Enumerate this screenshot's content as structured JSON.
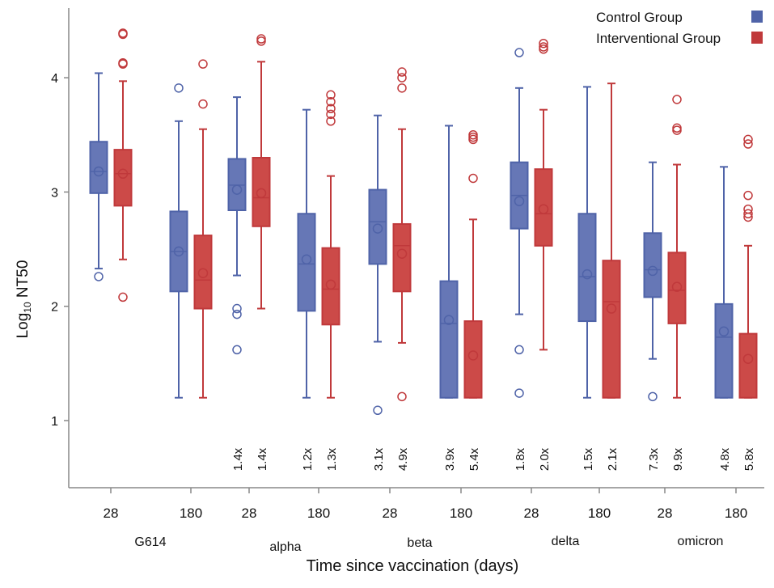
{
  "chart_data": {
    "type": "boxplot",
    "ylabel_main": "Log",
    "ylabel_sub": "10",
    "ylabel_rest": " NT50",
    "xlabel": "Time since vaccination (days)",
    "yticks": [
      1,
      2,
      3,
      4
    ],
    "ylim": [
      0.9,
      4.6
    ],
    "colors": {
      "control": "#4f63a8",
      "interventional": "#c0393b"
    },
    "legend": [
      {
        "name": "Control Group",
        "color": "#4f63a8"
      },
      {
        "name": "Interventional Group",
        "color": "#c0393b"
      }
    ],
    "legend_position": "top-right",
    "variants": [
      "G614",
      "alpha",
      "beta",
      "delta",
      "omicron"
    ],
    "timepoint_labels": [
      "28",
      "180",
      "28",
      "180",
      "28",
      "180",
      "28",
      "180",
      "28",
      "180"
    ],
    "groups": [
      {
        "variant": "G614",
        "day": "28",
        "control": {
          "min": 2.33,
          "q1": 2.99,
          "median": 3.18,
          "q3": 3.44,
          "max": 4.04,
          "mean": 3.18,
          "outliers": [
            2.26
          ],
          "fold": ""
        },
        "interventional": {
          "min": 2.41,
          "q1": 2.88,
          "median": 3.16,
          "q3": 3.37,
          "max": 3.97,
          "mean": 3.16,
          "outliers": [
            2.08,
            4.12,
            4.13,
            4.38,
            4.39
          ],
          "fold": ""
        }
      },
      {
        "variant": "G614",
        "day": "180",
        "control": {
          "min": 1.2,
          "q1": 2.13,
          "median": 2.48,
          "q3": 2.83,
          "max": 3.62,
          "mean": 2.48,
          "outliers": [
            3.91
          ],
          "fold": ""
        },
        "interventional": {
          "min": 1.2,
          "q1": 1.98,
          "median": 2.23,
          "q3": 2.62,
          "max": 3.55,
          "mean": 2.29,
          "outliers": [
            3.77,
            4.12
          ],
          "fold": ""
        }
      },
      {
        "variant": "alpha",
        "day": "28",
        "control": {
          "min": 2.27,
          "q1": 2.84,
          "median": 3.06,
          "q3": 3.29,
          "max": 3.83,
          "mean": 3.02,
          "outliers": [
            1.62,
            1.93,
            1.98
          ],
          "fold": "1.4x"
        },
        "interventional": {
          "min": 1.98,
          "q1": 2.7,
          "median": 2.95,
          "q3": 3.3,
          "max": 4.14,
          "mean": 2.99,
          "outliers": [
            4.32,
            4.34
          ],
          "fold": "1.4x"
        }
      },
      {
        "variant": "alpha",
        "day": "180",
        "control": {
          "min": 1.2,
          "q1": 1.96,
          "median": 2.37,
          "q3": 2.81,
          "max": 3.72,
          "mean": 2.41,
          "outliers": [],
          "fold": "1.2x"
        },
        "interventional": {
          "min": 1.2,
          "q1": 1.84,
          "median": 2.15,
          "q3": 2.51,
          "max": 3.14,
          "mean": 2.19,
          "outliers": [
            3.62,
            3.68,
            3.73,
            3.79,
            3.85
          ],
          "fold": "1.3x"
        }
      },
      {
        "variant": "beta",
        "day": "28",
        "control": {
          "min": 1.69,
          "q1": 2.37,
          "median": 2.74,
          "q3": 3.02,
          "max": 3.67,
          "mean": 2.68,
          "outliers": [
            1.09
          ],
          "fold": "3.1x"
        },
        "interventional": {
          "min": 1.68,
          "q1": 2.13,
          "median": 2.53,
          "q3": 2.72,
          "max": 3.55,
          "mean": 2.46,
          "outliers": [
            1.21,
            3.91,
            4.0,
            4.05
          ],
          "fold": "4.9x"
        }
      },
      {
        "variant": "beta",
        "day": "180",
        "control": {
          "min": 1.2,
          "q1": 1.2,
          "median": 1.85,
          "q3": 2.22,
          "max": 3.58,
          "mean": 1.88,
          "outliers": [],
          "fold": "3.9x"
        },
        "interventional": {
          "min": 1.2,
          "q1": 1.2,
          "median": 1.2,
          "q3": 1.87,
          "max": 2.76,
          "mean": 1.57,
          "outliers": [
            3.12,
            3.46,
            3.48,
            3.5
          ],
          "fold": "5.4x"
        }
      },
      {
        "variant": "delta",
        "day": "28",
        "control": {
          "min": 1.93,
          "q1": 2.68,
          "median": 2.97,
          "q3": 3.26,
          "max": 3.91,
          "mean": 2.92,
          "outliers": [
            1.24,
            1.62,
            4.22
          ],
          "fold": "1.8x"
        },
        "interventional": {
          "min": 1.62,
          "q1": 2.53,
          "median": 2.81,
          "q3": 3.2,
          "max": 3.72,
          "mean": 2.85,
          "outliers": [
            4.25,
            4.27,
            4.3
          ],
          "fold": "2.0x"
        }
      },
      {
        "variant": "delta",
        "day": "180",
        "control": {
          "min": 1.2,
          "q1": 1.87,
          "median": 2.26,
          "q3": 2.81,
          "max": 3.92,
          "mean": 2.28,
          "outliers": [],
          "fold": "1.5x"
        },
        "interventional": {
          "min": 1.2,
          "q1": 1.2,
          "median": 2.04,
          "q3": 2.4,
          "max": 3.95,
          "mean": 1.98,
          "outliers": [],
          "fold": "2.1x"
        }
      },
      {
        "variant": "omicron",
        "day": "28",
        "control": {
          "min": 1.54,
          "q1": 2.08,
          "median": 2.32,
          "q3": 2.64,
          "max": 3.26,
          "mean": 2.31,
          "outliers": [
            1.21
          ],
          "fold": "7.3x"
        },
        "interventional": {
          "min": 1.2,
          "q1": 1.85,
          "median": 2.14,
          "q3": 2.47,
          "max": 3.24,
          "mean": 2.17,
          "outliers": [
            3.54,
            3.56,
            3.81
          ],
          "fold": "9.9x"
        }
      },
      {
        "variant": "omicron",
        "day": "180",
        "control": {
          "min": 1.2,
          "q1": 1.2,
          "median": 1.73,
          "q3": 2.02,
          "max": 3.22,
          "mean": 1.78,
          "outliers": [],
          "fold": "4.8x"
        },
        "interventional": {
          "min": 1.2,
          "q1": 1.2,
          "median": 1.2,
          "q3": 1.76,
          "max": 2.53,
          "mean": 1.54,
          "outliers": [
            2.78,
            2.81,
            2.85,
            2.97,
            3.42,
            3.46
          ],
          "fold": "5.8x"
        }
      }
    ]
  }
}
